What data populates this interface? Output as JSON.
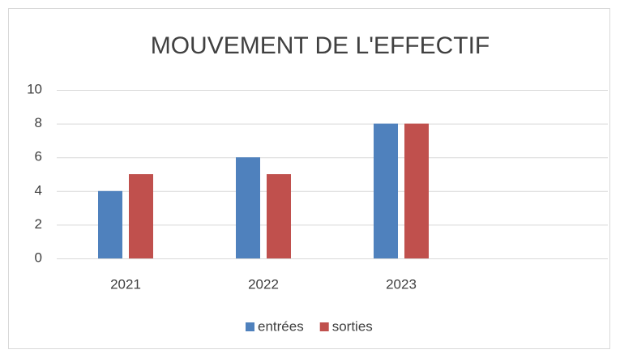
{
  "chart_data": {
    "type": "bar",
    "title": "MOUVEMENT DE L'EFFECTIF",
    "categories": [
      "2021",
      "2022",
      "2023",
      null
    ],
    "series": [
      {
        "name": "entrées",
        "color": "#4f81bd",
        "values": [
          4,
          6,
          8,
          null
        ]
      },
      {
        "name": "sorties",
        "color": "#c0504d",
        "values": [
          5,
          5,
          8,
          null
        ]
      }
    ],
    "ylim": [
      0,
      10
    ],
    "yticks": [
      0,
      2,
      4,
      6,
      8,
      10
    ],
    "grid": true,
    "legend": "bottom"
  }
}
